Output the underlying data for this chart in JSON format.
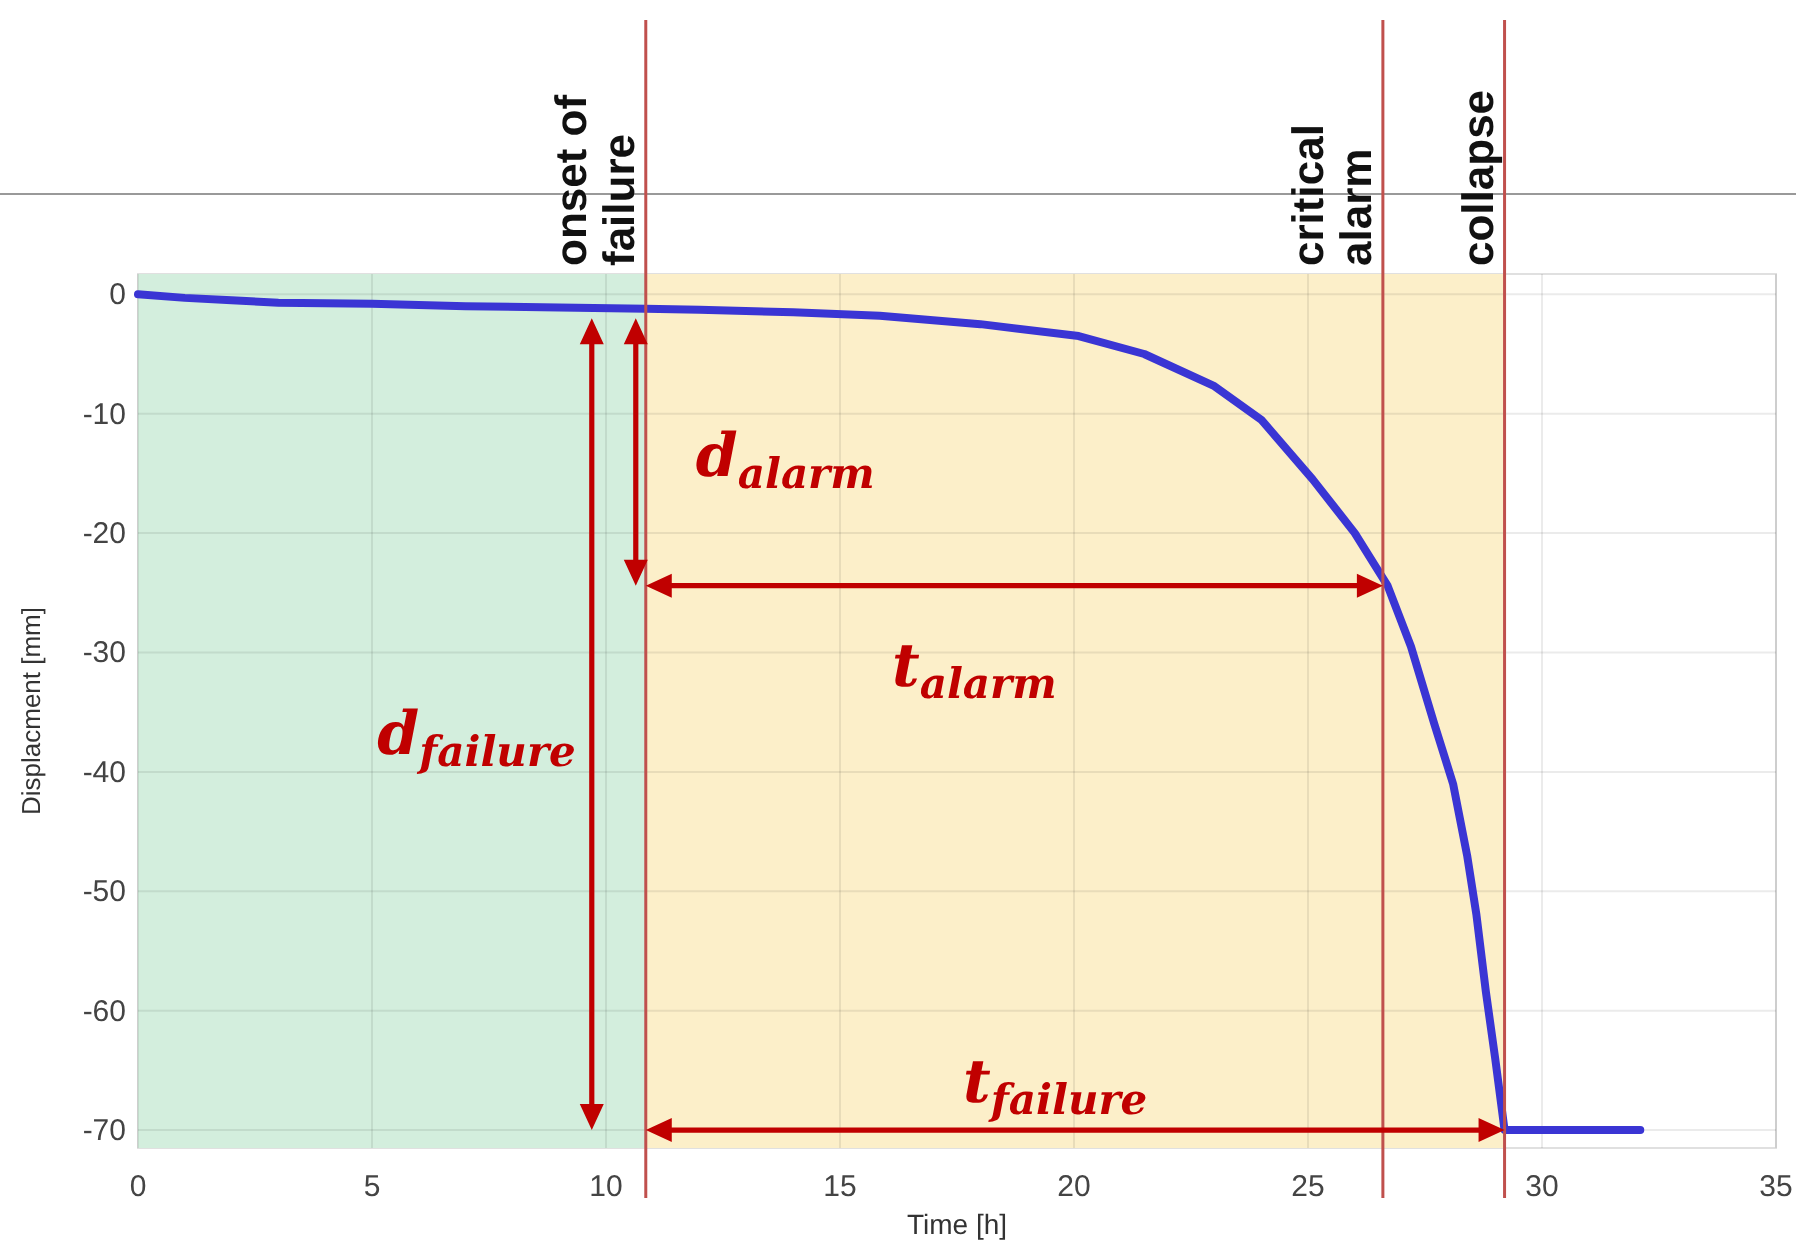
{
  "chart_data": {
    "type": "line",
    "xlabel": "Time [h]",
    "ylabel": "Displacment [mm]",
    "xlim": [
      0,
      35
    ],
    "ylim": [
      -71.5,
      1.7
    ],
    "xticks": [
      0,
      5,
      10,
      15,
      20,
      25,
      30,
      35
    ],
    "yticks": [
      0,
      -10,
      -20,
      -30,
      -40,
      -50,
      -60,
      -70
    ],
    "grid": true,
    "series": [
      {
        "color": "#3a35d4",
        "x": [
          0,
          1,
          2,
          3,
          5,
          7,
          9,
          10.85,
          12,
          14,
          15.85,
          18,
          20.1,
          21.5,
          23,
          24,
          25.1,
          26,
          26.7,
          27.2,
          27.7,
          28.1,
          28.4,
          28.6,
          28.8,
          29,
          29.2,
          30,
          31,
          32.1
        ],
        "values": [
          0,
          -0.3,
          -0.5,
          -0.7,
          -0.8,
          -1,
          -1.1,
          -1.2,
          -1.3,
          -1.5,
          -1.8,
          -2.5,
          -3.5,
          -5,
          -7.7,
          -10.5,
          -15.5,
          -20,
          -24.4,
          -29.5,
          -36,
          -41,
          -47,
          -52,
          -58.4,
          -64,
          -70,
          -70,
          -70,
          -70
        ]
      }
    ],
    "bands": [
      {
        "axis": "x",
        "from": 0,
        "to": 10.85,
        "color": "#d3eedd"
      },
      {
        "axis": "x",
        "from": 10.85,
        "to": 29.2,
        "color": "#fcefc9"
      }
    ],
    "ref_lines": [
      {
        "axis": "x",
        "value": 10.85,
        "label": "onset of failure",
        "color": "#c0504d"
      },
      {
        "axis": "x",
        "value": 26.6,
        "label": "critical alarm",
        "color": "#c0504d"
      },
      {
        "axis": "x",
        "value": 29.2,
        "label": "collapse",
        "color": "#c0504d"
      }
    ],
    "annotations": [
      "d$_{alarm}$",
      "t$_{alarm}$",
      "d$_{failure}$",
      "t$_{failure}$"
    ]
  }
}
